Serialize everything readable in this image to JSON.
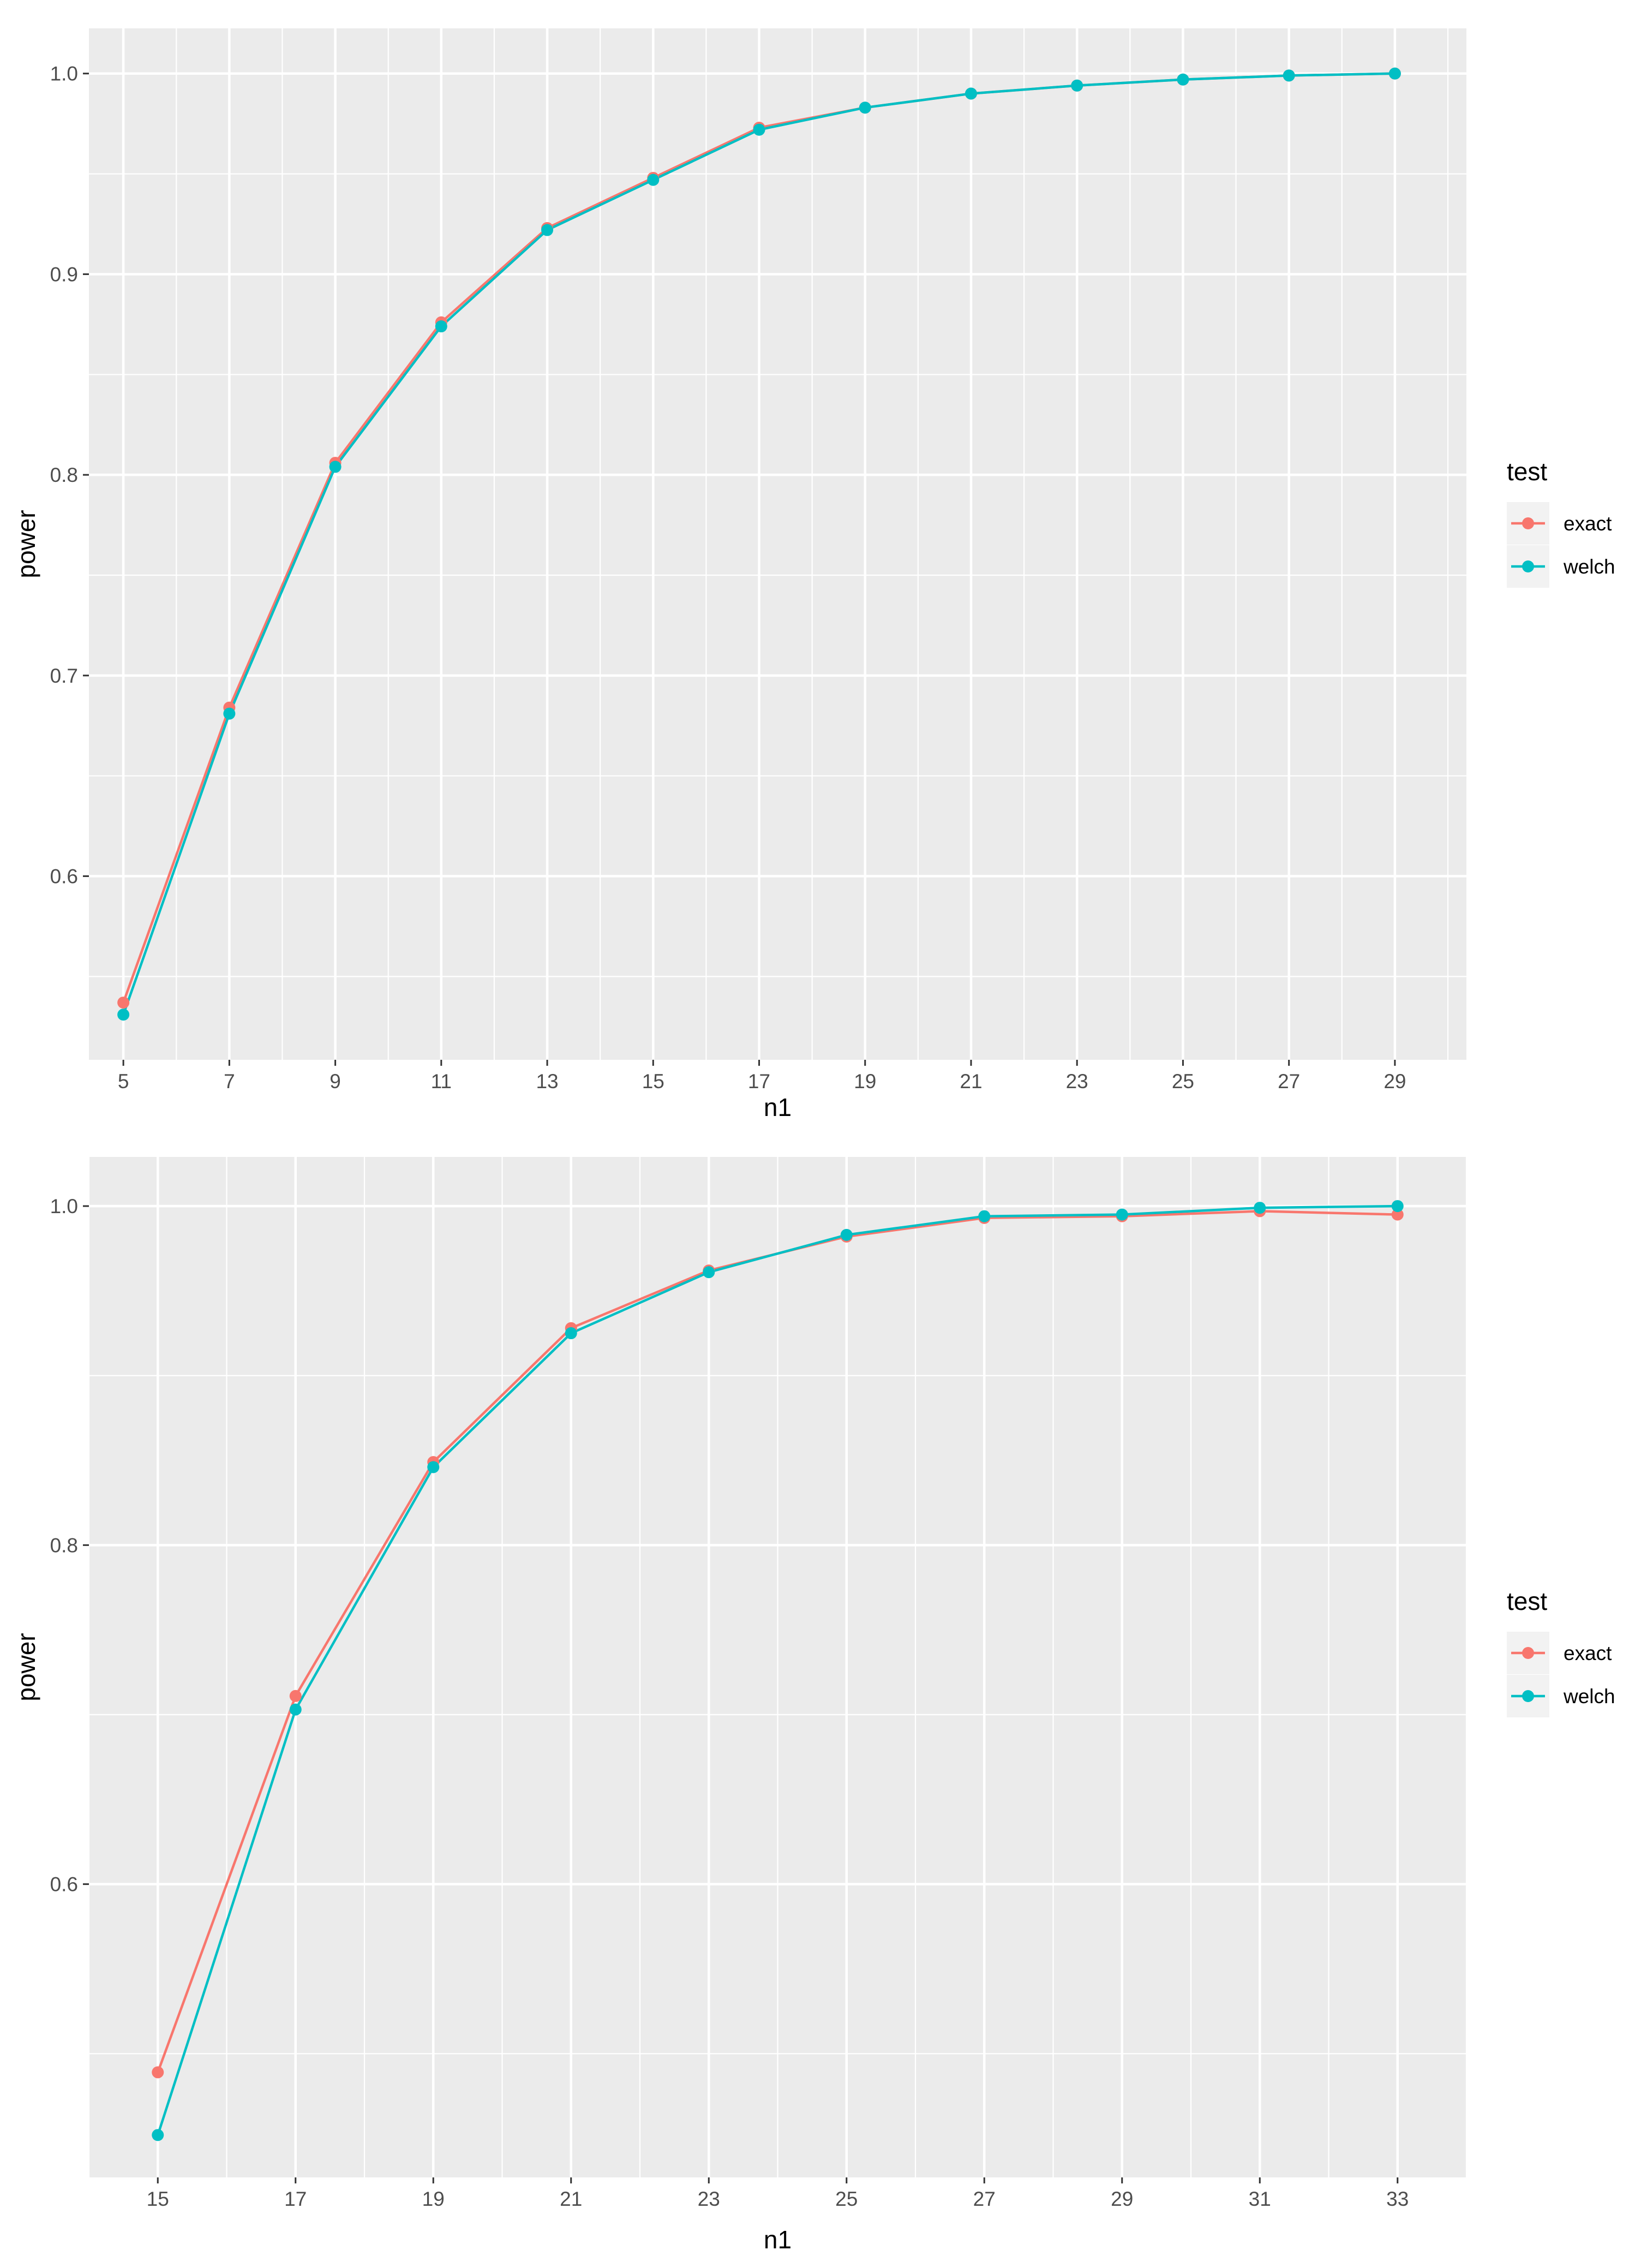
{
  "chart_data": [
    {
      "type": "line",
      "title": "",
      "xlabel": "n1",
      "ylabel": "power",
      "xlim": [
        4.35,
        30.35
      ],
      "ylim": [
        0.5085,
        1.0225
      ],
      "x_ticks": [
        5,
        7,
        9,
        11,
        13,
        15,
        17,
        19,
        21,
        23,
        25,
        27,
        29
      ],
      "y_ticks": [
        0.6,
        0.7,
        0.8,
        0.9,
        1.0
      ],
      "y_tick_labels": [
        "0.6",
        "0.7",
        "0.8",
        "0.9",
        "1.0"
      ],
      "grid": true,
      "legend": {
        "title": "test",
        "position": "right"
      },
      "series": [
        {
          "name": "exact",
          "color": "#F8766D",
          "x": [
            5,
            7,
            9,
            11,
            13,
            15,
            17,
            19,
            21,
            23,
            25,
            27,
            29
          ],
          "y": [
            0.537,
            0.684,
            0.806,
            0.876,
            0.923,
            0.948,
            0.973,
            0.983,
            0.99,
            0.994,
            0.997,
            0.999,
            1.0
          ]
        },
        {
          "name": "welch",
          "color": "#00BFC4",
          "x": [
            5,
            7,
            9,
            11,
            13,
            15,
            17,
            19,
            21,
            23,
            25,
            27,
            29
          ],
          "y": [
            0.531,
            0.681,
            0.804,
            0.874,
            0.922,
            0.947,
            0.972,
            0.983,
            0.99,
            0.994,
            0.997,
            0.999,
            1.0
          ]
        }
      ]
    },
    {
      "type": "line",
      "title": "",
      "xlabel": "n1",
      "ylabel": "power",
      "xlim": [
        14.0,
        34.0
      ],
      "ylim": [
        0.427,
        1.029
      ],
      "x_ticks": [
        15,
        17,
        19,
        21,
        23,
        25,
        27,
        29,
        31,
        33
      ],
      "y_ticks": [
        0.6,
        0.8,
        1.0
      ],
      "y_tick_labels": [
        "0.6",
        "0.8",
        "1.0"
      ],
      "grid": true,
      "legend": {
        "title": "test",
        "position": "right"
      },
      "series": [
        {
          "name": "exact",
          "color": "#F8766D",
          "x": [
            15,
            17,
            19,
            21,
            23,
            25,
            27,
            29,
            31,
            33
          ],
          "y": [
            0.489,
            0.711,
            0.849,
            0.928,
            0.962,
            0.982,
            0.993,
            0.994,
            0.997,
            0.995
          ]
        },
        {
          "name": "welch",
          "color": "#00BFC4",
          "x": [
            15,
            17,
            19,
            21,
            23,
            25,
            27,
            29,
            31,
            33
          ],
          "y": [
            0.452,
            0.703,
            0.846,
            0.925,
            0.961,
            0.983,
            0.994,
            0.995,
            0.999,
            1.0
          ]
        }
      ]
    }
  ]
}
